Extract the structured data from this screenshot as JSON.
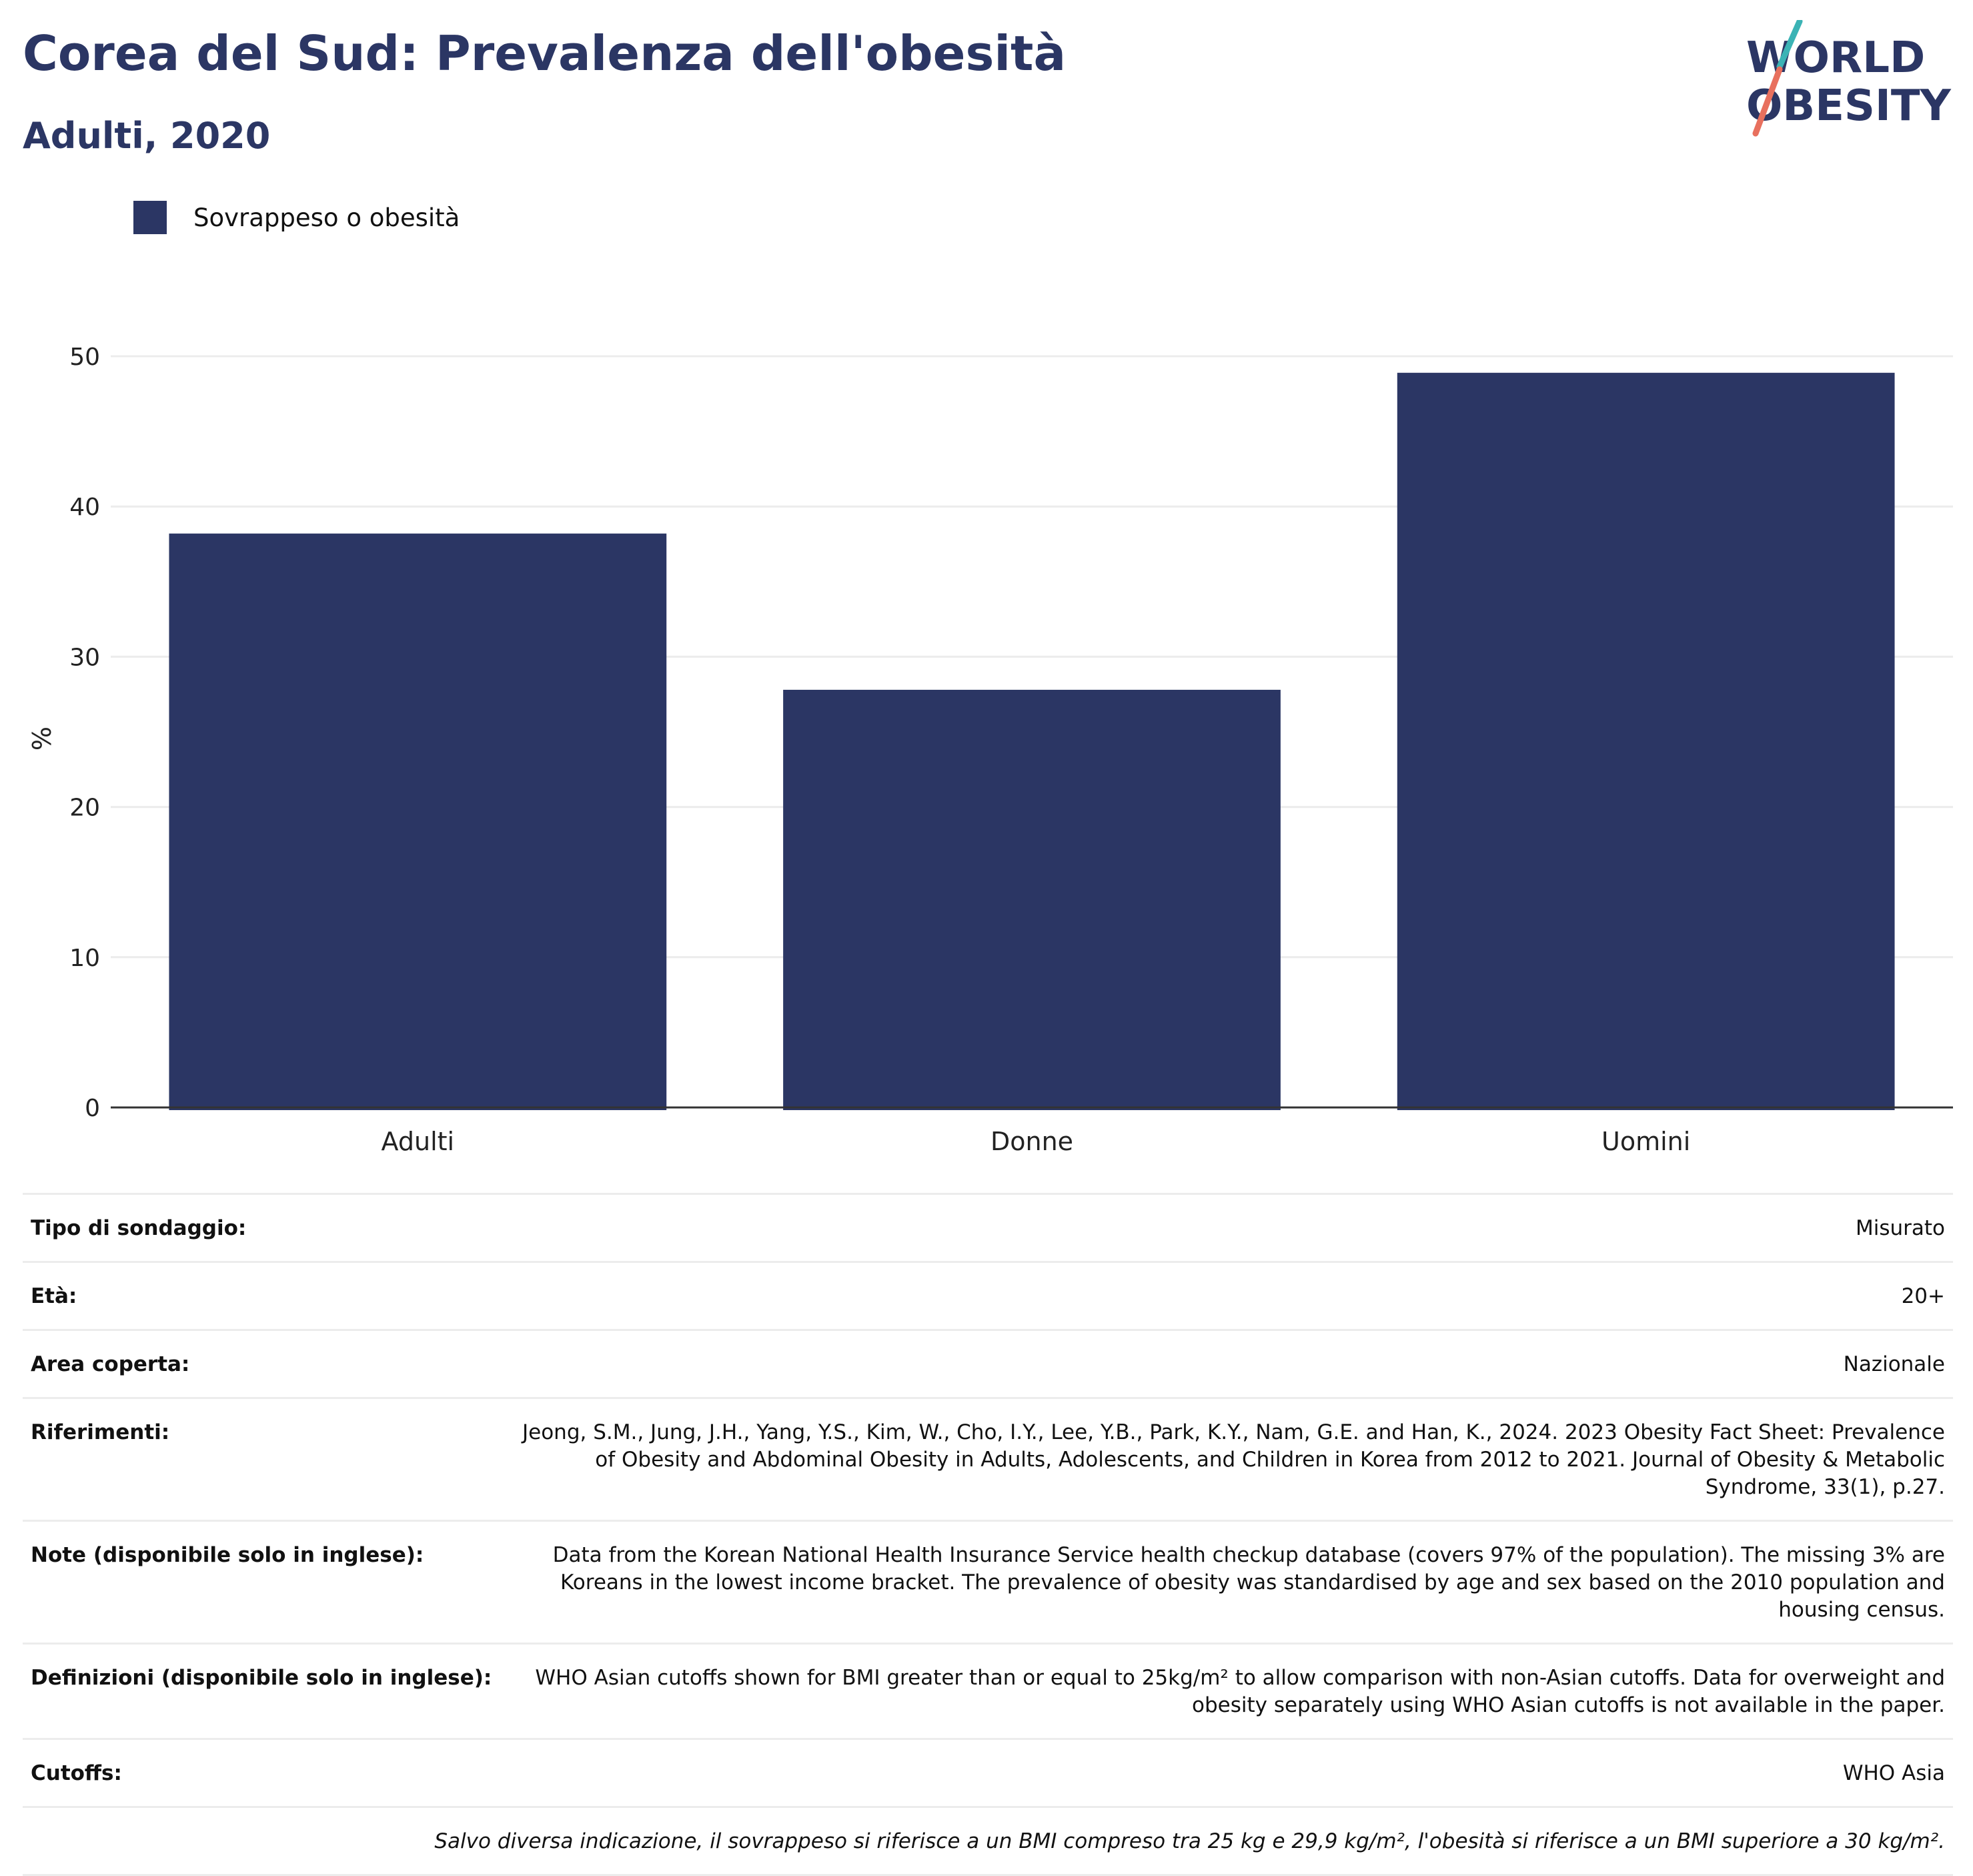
{
  "header": {
    "title": "Corea del Sud: Prevalenza dell'obesità",
    "subtitle": "Adulti, 2020"
  },
  "logo": {
    "line1": "WORLD",
    "line2": "OBESITY",
    "teal": "#3bb3b5",
    "coral": "#e8705e",
    "navy": "#2b3664"
  },
  "legend": {
    "label": "Sovrappeso o obesità",
    "color": "#2b3664"
  },
  "chart_data": {
    "type": "bar",
    "categories": [
      "Adulti",
      "Donne",
      "Uomini"
    ],
    "series": [
      {
        "name": "Sovrappeso o obesità",
        "values": [
          38.2,
          27.8,
          48.9
        ],
        "color": "#2b3664"
      }
    ],
    "ylabel": "%",
    "ylim": [
      0,
      50
    ],
    "yticks": [
      0,
      10,
      20,
      30,
      40,
      50
    ],
    "grid": true,
    "legend_position": "top-left"
  },
  "info": {
    "rows": [
      {
        "key": "Tipo di sondaggio:",
        "value": "Misurato"
      },
      {
        "key": "Età:",
        "value": "20+"
      },
      {
        "key": "Area coperta:",
        "value": "Nazionale"
      },
      {
        "key": "Riferimenti:",
        "value": "Jeong, S.M., Jung, J.H., Yang, Y.S., Kim, W., Cho, I.Y., Lee, Y.B., Park, K.Y., Nam, G.E. and Han, K., 2024. 2023 Obesity Fact Sheet: Prevalence of Obesity and Abdominal Obesity in Adults, Adolescents, and Children in Korea from 2012 to 2021. Journal of Obesity & Metabolic Syndrome, 33(1), p.27."
      },
      {
        "key": "Note (disponibile solo in inglese):",
        "value": "Data from the Korean National Health Insurance Service health checkup database (covers 97% of the population). The missing 3% are Koreans in the lowest income bracket. The prevalence of obesity was standardised by age and sex based on the 2010 population and housing census."
      },
      {
        "key": "Definizioni (disponibile solo in inglese):",
        "value": "WHO Asian cutoffs shown for BMI greater than or equal to 25kg/m² to allow comparison with non-Asian cutoffs. Data for overweight and obesity separately using WHO Asian cutoffs is not available in the paper."
      },
      {
        "key": "Cutoffs:",
        "value": "WHO Asia"
      }
    ],
    "footnote": "Salvo diversa indicazione, il sovrappeso si riferisce a un BMI compreso tra 25 kg e 29,9 kg/m², l'obesità si riferisce a un BMI superiore a 30 kg/m²."
  }
}
